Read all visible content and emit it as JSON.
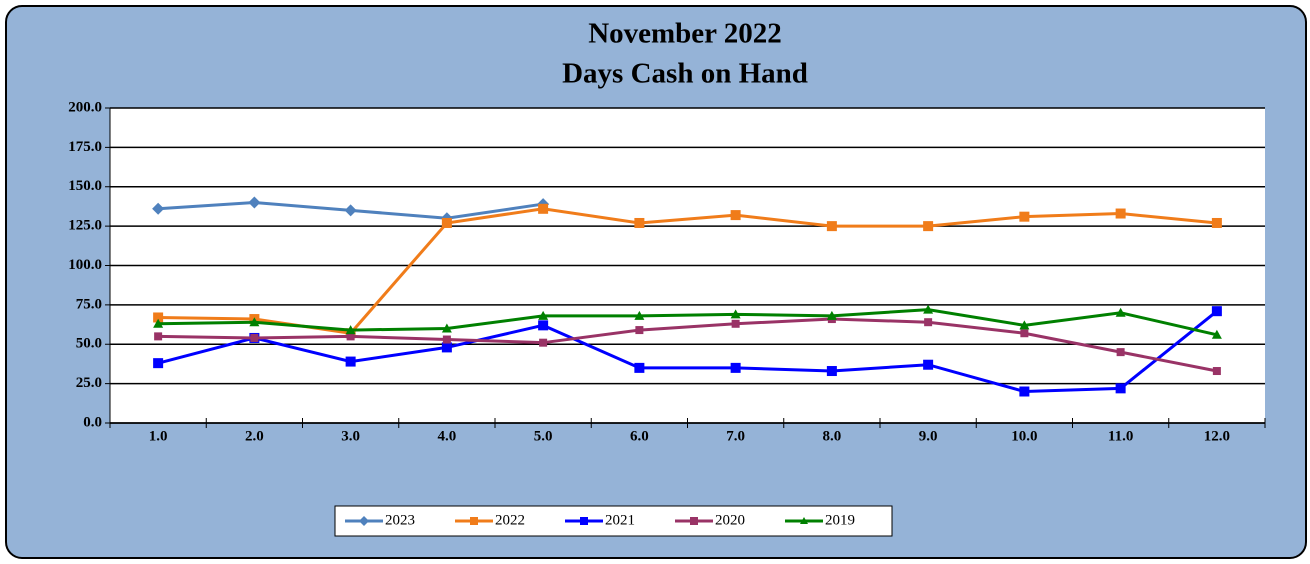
{
  "chart_data": {
    "type": "line",
    "title": [
      "November 2022",
      "Days Cash on Hand"
    ],
    "categories": [
      "1.0",
      "2.0",
      "3.0",
      "4.0",
      "5.0",
      "6.0",
      "7.0",
      "8.0",
      "9.0",
      "10.0",
      "11.0",
      "12.0"
    ],
    "series": [
      {
        "name": "2023",
        "color": "#4f81bd",
        "marker": "diamond",
        "values": [
          136,
          140,
          135,
          130,
          139,
          null,
          null,
          null,
          null,
          null,
          null,
          null
        ]
      },
      {
        "name": "2022",
        "color": "#f07c1a",
        "marker": "square",
        "values": [
          67,
          66,
          57,
          127,
          136,
          127,
          132,
          125,
          125,
          131,
          133,
          127
        ]
      },
      {
        "name": "2021",
        "color": "#0000ff",
        "marker": "square",
        "values": [
          38,
          54,
          39,
          48,
          62,
          35,
          35,
          33,
          37,
          20,
          22,
          71
        ]
      },
      {
        "name": "2020",
        "color": "#993366",
        "marker": "square",
        "values": [
          55,
          54,
          55,
          53,
          51,
          59,
          63,
          66,
          64,
          57,
          45,
          33
        ]
      },
      {
        "name": "2019",
        "color": "#008000",
        "marker": "triangle",
        "values": [
          63,
          64,
          59,
          60,
          68,
          68,
          69,
          68,
          72,
          62,
          70,
          56
        ]
      }
    ],
    "ylim": [
      0,
      200
    ],
    "yticks": [
      {
        "value": 0,
        "label": "0.0"
      },
      {
        "value": 25,
        "label": "25.0"
      },
      {
        "value": 50,
        "label": "50.0"
      },
      {
        "value": 75,
        "label": "75.0"
      },
      {
        "value": 100,
        "label": "100.0"
      },
      {
        "value": 125,
        "label": "125.0"
      },
      {
        "value": 150,
        "label": "150.0"
      },
      {
        "value": 175,
        "label": "175.0"
      },
      {
        "value": 200,
        "label": "200.0"
      }
    ],
    "grid": true,
    "legend": "bottom"
  }
}
